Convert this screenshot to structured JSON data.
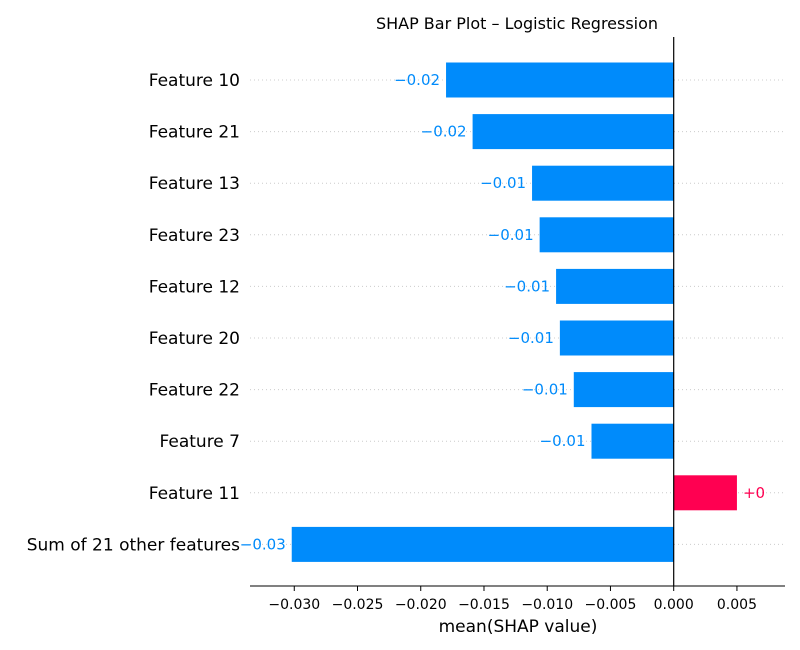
{
  "chart_data": {
    "type": "bar",
    "orientation": "horizontal",
    "title": "SHAP Bar Plot – Logistic Regression",
    "xlabel": "mean(SHAP value)",
    "ylabel": "",
    "xlim": [
      -0.0335,
      0.0088
    ],
    "xticks": [
      -0.03,
      -0.025,
      -0.02,
      -0.015,
      -0.01,
      -0.005,
      0.0,
      0.005
    ],
    "xtick_labels": [
      "−0.030",
      "−0.025",
      "−0.020",
      "−0.015",
      "−0.010",
      "−0.005",
      "0.000",
      "0.005"
    ],
    "grid": "horizontal dotted lines per feature",
    "zero_line": true,
    "categories": [
      "Feature 10",
      "Feature 21",
      "Feature 13",
      "Feature 23",
      "Feature 12",
      "Feature 20",
      "Feature 22",
      "Feature 7",
      "Feature 11",
      "Sum of 21 other features"
    ],
    "values": [
      -0.018,
      -0.0159,
      -0.0112,
      -0.0106,
      -0.0093,
      -0.009,
      -0.0079,
      -0.0065,
      0.005,
      -0.0302
    ],
    "value_labels": [
      "−0.02",
      "−0.02",
      "−0.01",
      "−0.01",
      "−0.01",
      "−0.01",
      "−0.01",
      "−0.01",
      "+0",
      "−0.03"
    ],
    "colors": {
      "negative": "#008bfb",
      "positive": "#ff0051",
      "axis": "#000000",
      "grid": "#cccccc"
    }
  }
}
